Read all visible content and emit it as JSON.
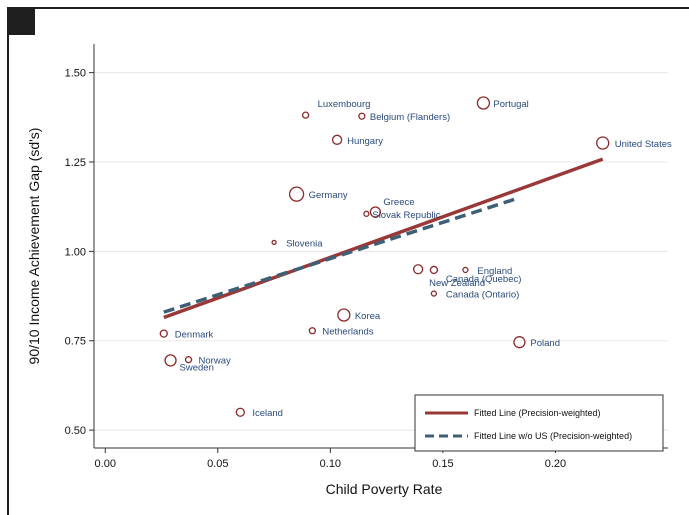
{
  "chart_data": {
    "type": "scatter",
    "xlabel": "Child Poverty Rate",
    "ylabel": "90/10 Income Achievement Gap (sd's)",
    "xlim": [
      -0.005,
      0.25
    ],
    "ylim": [
      0.45,
      1.58
    ],
    "x_ticks": [
      "0.00",
      "0.05",
      "0.10",
      "0.15",
      "0.20"
    ],
    "x_tick_values": [
      0,
      0.05,
      0.1,
      0.15,
      0.2
    ],
    "y_ticks": [
      "0.50",
      "0.75",
      "1.00",
      "1.25",
      "1.50"
    ],
    "y_tick_values": [
      0.5,
      0.75,
      1.0,
      1.25,
      1.5
    ],
    "grid": true,
    "legend_position": "bottom-right",
    "colors": {
      "marker": "#8b2a2a",
      "label": "#2a4a78",
      "fitted": "#9a3838",
      "fitted_wo_us": "#3f5f75",
      "grid": "#e8e8e8"
    },
    "points": [
      {
        "label": "Luxembourg",
        "x": 0.089,
        "y": 1.381,
        "size": 3,
        "label_dx": 12,
        "label_dy": -8,
        "anchor": "start"
      },
      {
        "label": "Belgium (Flanders)",
        "x": 0.114,
        "y": 1.378,
        "size": 3,
        "label_dx": 8,
        "label_dy": 4,
        "anchor": "start"
      },
      {
        "label": "Portugal",
        "x": 0.168,
        "y": 1.415,
        "size": 6,
        "label_dx": 10,
        "label_dy": 4,
        "anchor": "start"
      },
      {
        "label": "Hungary",
        "x": 0.103,
        "y": 1.312,
        "size": 4.5,
        "label_dx": 10,
        "label_dy": 4,
        "anchor": "start"
      },
      {
        "label": "United States",
        "x": 0.221,
        "y": 1.303,
        "size": 6,
        "label_dx": 12,
        "label_dy": 4,
        "anchor": "start"
      },
      {
        "label": "Germany",
        "x": 0.085,
        "y": 1.16,
        "size": 7,
        "label_dx": 12,
        "label_dy": 4,
        "anchor": "start"
      },
      {
        "label": "Greece",
        "x": 0.12,
        "y": 1.11,
        "size": 5,
        "label_dx": 8,
        "label_dy": -7,
        "anchor": "start"
      },
      {
        "label": "Slovak Republic",
        "x": 0.116,
        "y": 1.105,
        "size": 2.5,
        "label_dx": 6,
        "label_dy": 4,
        "anchor": "start"
      },
      {
        "label": "Slovenia",
        "x": 0.075,
        "y": 1.025,
        "size": 2,
        "label_dx": 12,
        "label_dy": 4,
        "anchor": "start"
      },
      {
        "label": "England",
        "x": 0.16,
        "y": 0.948,
        "size": 2.5,
        "label_dx": 12,
        "label_dy": 4,
        "anchor": "start"
      },
      {
        "label": "Canada (Quebec)",
        "x": 0.146,
        "y": 0.948,
        "size": 3.5,
        "label_dx": 12,
        "label_dy": 12,
        "anchor": "start"
      },
      {
        "label": "New Zealand",
        "x": 0.139,
        "y": 0.95,
        "size": 4.5,
        "label_dx": 11,
        "label_dy": 17,
        "anchor": "start"
      },
      {
        "label": "Canada (Ontario)",
        "x": 0.146,
        "y": 0.882,
        "size": 2.5,
        "label_dx": 12,
        "label_dy": 4,
        "anchor": "start"
      },
      {
        "label": "Korea",
        "x": 0.106,
        "y": 0.822,
        "size": 6,
        "label_dx": 11,
        "label_dy": 4,
        "anchor": "start"
      },
      {
        "label": "Netherlands",
        "x": 0.092,
        "y": 0.778,
        "size": 3,
        "label_dx": 10,
        "label_dy": 4,
        "anchor": "start"
      },
      {
        "label": "Denmark",
        "x": 0.026,
        "y": 0.77,
        "size": 3.5,
        "label_dx": 11,
        "label_dy": 4,
        "anchor": "start"
      },
      {
        "label": "Poland",
        "x": 0.184,
        "y": 0.746,
        "size": 5.5,
        "label_dx": 11,
        "label_dy": 4,
        "anchor": "start"
      },
      {
        "label": "Norway",
        "x": 0.037,
        "y": 0.697,
        "size": 3,
        "label_dx": 10,
        "label_dy": 4,
        "anchor": "start"
      },
      {
        "label": "Sweden",
        "x": 0.029,
        "y": 0.695,
        "size": 5.5,
        "label_dx": 9,
        "label_dy": 10,
        "anchor": "start"
      },
      {
        "label": "Iceland",
        "x": 0.06,
        "y": 0.55,
        "size": 4,
        "label_dx": 12,
        "label_dy": 4,
        "anchor": "start"
      }
    ],
    "series": [
      {
        "name": "Fitted Line (Precision-weighted)",
        "x": [
          0.026,
          0.221
        ],
        "y": [
          0.815,
          1.258
        ],
        "style": "solid"
      },
      {
        "name": "Fitted Line w/o US (Precision-weighted)",
        "x": [
          0.026,
          0.184
        ],
        "y": [
          0.83,
          1.15
        ],
        "style": "dashed"
      }
    ]
  }
}
